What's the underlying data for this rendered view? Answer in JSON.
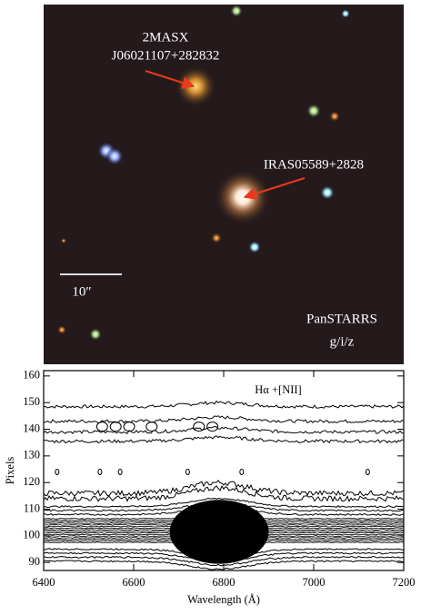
{
  "image": {
    "annotations": [
      {
        "lines": [
          "2MASX",
          "J06021107+282832"
        ]
      },
      {
        "lines": [
          "IRAS05589+2828"
        ]
      }
    ],
    "scale_bar": "10″",
    "survey": [
      "PanSTARRS",
      "g/i/z"
    ]
  },
  "chart_data": {
    "type": "contour",
    "title": "Hα +[NII]",
    "xlabel": "Wavelength (Å)",
    "ylabel": "Pixels",
    "xlim": [
      6400,
      7200
    ],
    "xticks": [
      6400,
      6600,
      6800,
      7000,
      7200
    ],
    "ylim": [
      87,
      162
    ],
    "yticks": [
      90,
      100,
      110,
      120,
      130,
      140,
      150,
      160
    ]
  }
}
